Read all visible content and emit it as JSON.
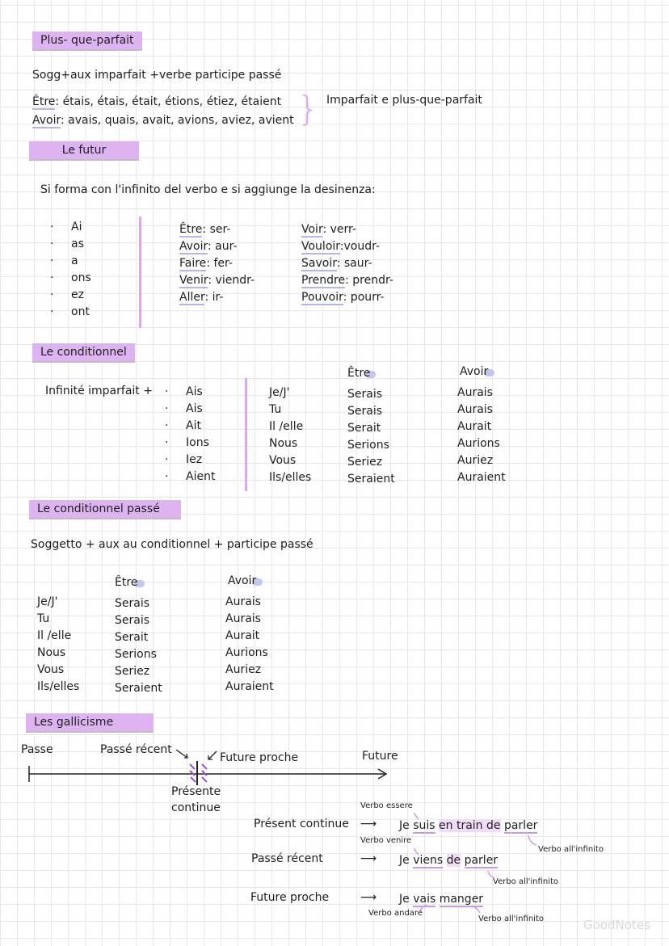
{
  "s1": {
    "title": "Plus- que-parfait",
    "formula": "Sogg+aux imparfait +verbe participe passé",
    "etre_label": "Être",
    "etre": ": étais, étais, était, étions, étiez, étaient",
    "avoir_label": "Avoir",
    "avoir": ": avais, quais, avait, avions, aviez, avient",
    "note": "Imparfait e plus-que-parfait"
  },
  "s2": {
    "title": "Le futur",
    "rule": "Si forma con l'infinito del verbo e si aggiunge la desinenza:",
    "endings": [
      "Ai",
      "as",
      "a",
      "ons",
      "ez",
      "ont"
    ],
    "col1": [
      [
        "Être",
        ": ser-"
      ],
      [
        "Avoir",
        ": aur-"
      ],
      [
        "Faire",
        ": fer-"
      ],
      [
        "Venir",
        ": viendr-"
      ],
      [
        "Aller",
        ": ir-"
      ]
    ],
    "col2": [
      [
        "Voir",
        ": verr-"
      ],
      [
        "Vouloir",
        ":voudr-"
      ],
      [
        "Savoir",
        ": saur-"
      ],
      [
        "Prendre",
        ": prendr-"
      ],
      [
        "Pouvoir",
        ": pourr-"
      ]
    ]
  },
  "s3": {
    "title": "Le conditionnel",
    "rule": "Infinité imparfait +",
    "endings": [
      "Ais",
      "Ais",
      "Ait",
      "Ions",
      "Iez",
      "Aient"
    ],
    "h_etre": "Être",
    "h_avoir": "Avoir",
    "pronouns": [
      "Je/J'",
      "Tu",
      "Il /elle",
      "Nous",
      "Vous",
      "Ils/elles"
    ],
    "etre": [
      "Serais",
      "Serais",
      "Serait",
      "Serions",
      "Seriez",
      "Seraient"
    ],
    "avoir": [
      "Aurais",
      "Aurais",
      "Aurait",
      "Aurions",
      "Auriez",
      "Auraient"
    ]
  },
  "s4": {
    "title": "Le conditionnel passé",
    "rule": "Soggetto + aux au conditionnel + participe passé",
    "h_etre": "Être",
    "h_avoir": "Avoir",
    "pronouns": [
      "Je/J'",
      "Tu",
      "Il /elle",
      "Nous",
      "Vous",
      "Ils/elles"
    ],
    "etre": [
      "Serais",
      "Serais",
      "Serait",
      "Serions",
      "Seriez",
      "Seraient"
    ],
    "avoir": [
      "Aurais",
      "Aurais",
      "Aurait",
      "Aurions",
      "Auriez",
      "Auraient"
    ]
  },
  "s5": {
    "title": "Les gallicisme",
    "passe": "Passe",
    "passe_recent": "Passé récent",
    "future_proche": "Future proche",
    "future": "Future",
    "presente": "Présente",
    "continue": "continue",
    "ex": [
      {
        "label": "Présent continue",
        "je": "Je",
        "aux": "suis",
        "mid": "en train de",
        "inf": "parler",
        "top": "Verbo essere",
        "bottom": "Verbo all'infinito"
      },
      {
        "label": "Passé récent",
        "je": "Je",
        "aux": "viens",
        "mid": "de",
        "inf": "parler",
        "top": "Verbo venire",
        "bottom": "Verbo all'infinito"
      },
      {
        "label": "Future proche",
        "je": "Je",
        "aux": "vais",
        "mid": "",
        "inf": "manger",
        "top": "Verbo andare",
        "bottom": "Verbo all'infinito"
      }
    ],
    "arrow": "⟶"
  },
  "watermark": "GoodNotes"
}
